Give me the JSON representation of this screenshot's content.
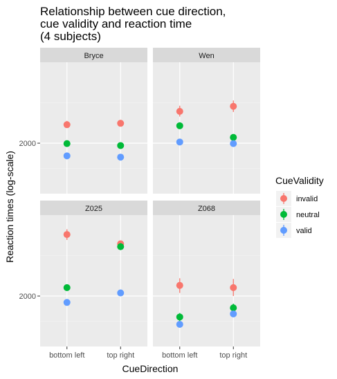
{
  "chart_data": {
    "type": "scatter",
    "title_lines": [
      "Relationship between cue direction,",
      "cue validity and reaction time",
      "(4 subjects)"
    ],
    "xlabel": "CueDirection",
    "ylabel": "Reaction times (log-scale)",
    "y_scale": "log",
    "categories": [
      "bottom left",
      "top right"
    ],
    "y_ticks": [
      {
        "value": 2000,
        "label": "2000"
      }
    ],
    "ylim": [
      1450,
      3350
    ],
    "legend": {
      "title": "CueValidity",
      "position": "right",
      "entries": [
        {
          "name": "invalid",
          "color": "#F8766D"
        },
        {
          "name": "neutral",
          "color": "#00BA38"
        },
        {
          "name": "valid",
          "color": "#619CFF"
        }
      ]
    },
    "grid": true,
    "panels": [
      {
        "subject": "Bryce",
        "series": [
          {
            "name": "invalid",
            "values": [
              2250,
              2270
            ],
            "lower": [
              2205,
              2225
            ],
            "upper": [
              2305,
              2320
            ]
          },
          {
            "name": "neutral",
            "values": [
              1995,
              1970
            ],
            "lower": [
              1975,
              1945
            ],
            "upper": [
              2015,
              1995
            ]
          },
          {
            "name": "valid",
            "values": [
              1845,
              1830
            ],
            "lower": [
              1830,
              1815
            ],
            "upper": [
              1860,
              1845
            ]
          }
        ]
      },
      {
        "subject": "Wen",
        "series": [
          {
            "name": "invalid",
            "values": [
              2450,
              2530
            ],
            "lower": [
              2370,
              2440
            ],
            "upper": [
              2540,
              2625
            ]
          },
          {
            "name": "neutral",
            "values": [
              2235,
              2075
            ],
            "lower": [
              2190,
              2035
            ],
            "upper": [
              2285,
              2115
            ]
          },
          {
            "name": "valid",
            "values": [
              2015,
              1995
            ],
            "lower": [
              1995,
              1975
            ],
            "upper": [
              2035,
              2015
            ]
          }
        ]
      },
      {
        "subject": "Z025",
        "series": [
          {
            "name": "invalid",
            "values": [
              2960,
              2790
            ],
            "lower": [
              2860,
              2740
            ],
            "upper": [
              3060,
              2840
            ]
          },
          {
            "name": "neutral",
            "values": [
              2110,
              2740
            ],
            "lower": [
              2070,
              2680
            ],
            "upper": [
              2150,
              2800
            ]
          },
          {
            "name": "valid",
            "values": [
              1920,
              2040
            ],
            "lower": [
              1900,
              2015
            ],
            "upper": [
              1940,
              2065
            ]
          }
        ]
      },
      {
        "subject": "Z068",
        "series": [
          {
            "name": "invalid",
            "values": [
              2140,
              2110
            ],
            "lower": [
              2040,
              2000
            ],
            "upper": [
              2240,
              2230
            ]
          },
          {
            "name": "neutral",
            "values": [
              1750,
              1855
            ],
            "lower": [
              1705,
              1810
            ],
            "upper": [
              1795,
              1905
            ]
          },
          {
            "name": "valid",
            "values": [
              1670,
              1785
            ],
            "lower": [
              1645,
              1750
            ],
            "upper": [
              1695,
              1820
            ]
          }
        ]
      }
    ]
  }
}
